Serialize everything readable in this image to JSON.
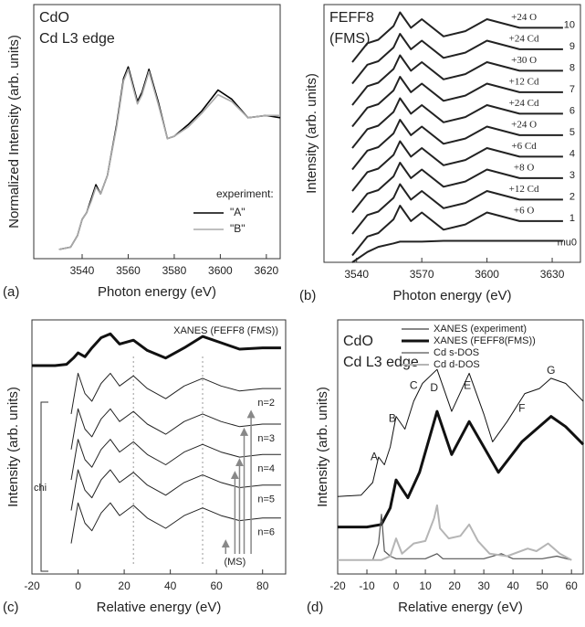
{
  "chart_data": [
    {
      "type": "line",
      "panel_label": "(a)",
      "title": "CdO",
      "subtitle": "Cd L3 edge",
      "xlabel": "Photon energy (eV)",
      "ylabel": "Normalized Intensity (arb. units)",
      "xlim": [
        3519,
        3626
      ],
      "ylim": [
        0,
        1.1
      ],
      "xticks": [
        3540,
        3560,
        3580,
        3600,
        3620
      ],
      "legend": "lower right",
      "legend_title": "experiment:",
      "series": [
        {
          "name": "\"A\"",
          "color": "#000000",
          "linewidth": 1.6,
          "x": [
            3530,
            3535,
            3538,
            3540,
            3542,
            3544,
            3546,
            3548,
            3551,
            3555,
            3558,
            3560,
            3564,
            3566,
            3569,
            3573,
            3577,
            3580,
            3586,
            3592,
            3599,
            3605,
            3612,
            3620,
            3626
          ],
          "values": [
            0.04,
            0.05,
            0.1,
            0.17,
            0.2,
            0.26,
            0.32,
            0.28,
            0.36,
            0.58,
            0.78,
            0.83,
            0.68,
            0.72,
            0.82,
            0.68,
            0.52,
            0.53,
            0.58,
            0.64,
            0.73,
            0.69,
            0.61,
            0.62,
            0.61
          ]
        },
        {
          "name": "\"B\"",
          "color": "#aaaaaa",
          "linewidth": 1.6,
          "x": [
            3530,
            3535,
            3538,
            3540,
            3542,
            3544,
            3546,
            3548,
            3551,
            3555,
            3558,
            3560,
            3564,
            3566,
            3569,
            3573,
            3577,
            3580,
            3586,
            3592,
            3599,
            3605,
            3612,
            3620,
            3626
          ],
          "values": [
            0.04,
            0.05,
            0.1,
            0.17,
            0.2,
            0.25,
            0.31,
            0.28,
            0.36,
            0.57,
            0.77,
            0.82,
            0.67,
            0.71,
            0.81,
            0.67,
            0.52,
            0.53,
            0.57,
            0.63,
            0.71,
            0.68,
            0.61,
            0.62,
            0.62
          ]
        }
      ]
    },
    {
      "type": "line",
      "panel_label": "(b)",
      "title": "FEFF8",
      "subtitle": "(FMS)",
      "xlabel": "Photon energy (eV)",
      "ylabel": "Intensity (arb. units)",
      "xlim": [
        3525,
        3643
      ],
      "ylim": [
        0,
        15
      ],
      "xticks": [
        3540,
        3570,
        3600,
        3630
      ],
      "series": [
        {
          "name": "mu0",
          "color": "#222222",
          "linewidth": 2,
          "x": [
            3538,
            3545,
            3550,
            3557,
            3560,
            3565,
            3570,
            3580,
            3590,
            3600,
            3615,
            3635
          ],
          "values": [
            0.0,
            0.6,
            0.9,
            1.1,
            1.2,
            1.2,
            1.2,
            1.25,
            1.25,
            1.25,
            1.25,
            1.25
          ]
        },
        {
          "name": "+6 O",
          "number": "1",
          "color": "#222222",
          "linewidth": 2,
          "x": [
            3538,
            3545,
            3550,
            3557,
            3560,
            3565,
            3570,
            3580,
            3590,
            3600,
            3615,
            3635
          ],
          "values": [
            0.4,
            1.5,
            1.7,
            2.5,
            3.3,
            2.4,
            2.9,
            1.9,
            2.2,
            2.9,
            2.4,
            2.4
          ]
        },
        {
          "name": "+12 Cd",
          "number": "2",
          "color": "#222222",
          "linewidth": 2,
          "x": [
            3538,
            3545,
            3550,
            3557,
            3560,
            3565,
            3570,
            3580,
            3590,
            3600,
            3615,
            3635
          ],
          "values": [
            1.65,
            2.75,
            2.95,
            3.75,
            4.55,
            3.65,
            4.15,
            3.15,
            3.45,
            4.15,
            3.65,
            3.65
          ]
        },
        {
          "name": "+8 O",
          "number": "3",
          "color": "#222222",
          "linewidth": 2,
          "x": [
            3538,
            3545,
            3550,
            3557,
            3560,
            3565,
            3570,
            3580,
            3590,
            3600,
            3615,
            3635
          ],
          "values": [
            2.9,
            4.0,
            4.2,
            5.0,
            5.8,
            4.9,
            5.4,
            4.4,
            4.7,
            5.4,
            4.9,
            4.9
          ]
        },
        {
          "name": "+6 Cd",
          "number": "4",
          "color": "#222222",
          "linewidth": 2,
          "x": [
            3538,
            3545,
            3550,
            3557,
            3560,
            3565,
            3570,
            3580,
            3590,
            3600,
            3615,
            3635
          ],
          "values": [
            4.15,
            5.25,
            5.45,
            6.25,
            7.05,
            6.15,
            6.65,
            5.65,
            5.95,
            6.65,
            6.15,
            6.15
          ]
        },
        {
          "name": "+24 O",
          "number": "5",
          "color": "#222222",
          "linewidth": 2,
          "x": [
            3538,
            3545,
            3550,
            3557,
            3560,
            3565,
            3570,
            3580,
            3590,
            3600,
            3615,
            3635
          ],
          "values": [
            5.4,
            6.5,
            6.7,
            7.5,
            8.3,
            7.4,
            7.9,
            6.9,
            7.2,
            7.9,
            7.4,
            7.4
          ]
        },
        {
          "name": "+24 Cd",
          "number": "6",
          "color": "#222222",
          "linewidth": 2,
          "x": [
            3538,
            3545,
            3550,
            3557,
            3560,
            3565,
            3570,
            3580,
            3590,
            3600,
            3615,
            3635
          ],
          "values": [
            6.65,
            7.75,
            7.95,
            8.75,
            9.55,
            8.65,
            9.15,
            8.15,
            8.45,
            9.15,
            8.65,
            8.65
          ]
        },
        {
          "name": "+12 Cd",
          "number": "7",
          "color": "#222222",
          "linewidth": 2,
          "x": [
            3538,
            3545,
            3550,
            3557,
            3560,
            3565,
            3570,
            3580,
            3590,
            3600,
            3615,
            3635
          ],
          "values": [
            7.9,
            9.0,
            9.2,
            10.0,
            10.8,
            9.9,
            10.4,
            9.4,
            9.7,
            10.4,
            9.9,
            9.9
          ]
        },
        {
          "name": "+30 O",
          "number": "8",
          "color": "#222222",
          "linewidth": 2,
          "x": [
            3538,
            3545,
            3550,
            3557,
            3560,
            3565,
            3570,
            3580,
            3590,
            3600,
            3615,
            3635
          ],
          "values": [
            9.15,
            10.25,
            10.45,
            11.25,
            12.05,
            11.15,
            11.65,
            10.65,
            10.95,
            11.65,
            11.15,
            11.15
          ]
        },
        {
          "name": "+24 Cd",
          "number": "9",
          "color": "#222222",
          "linewidth": 2,
          "x": [
            3538,
            3545,
            3550,
            3557,
            3560,
            3565,
            3570,
            3580,
            3590,
            3600,
            3615,
            3635
          ],
          "values": [
            10.4,
            11.5,
            11.7,
            12.5,
            13.3,
            12.4,
            12.9,
            11.9,
            12.2,
            12.9,
            12.4,
            12.4
          ]
        },
        {
          "name": "+24 O",
          "number": "10",
          "color": "#222222",
          "linewidth": 2,
          "x": [
            3538,
            3545,
            3550,
            3557,
            3560,
            3565,
            3570,
            3580,
            3590,
            3600,
            3615,
            3635
          ],
          "values": [
            11.65,
            12.75,
            12.95,
            13.75,
            14.55,
            13.65,
            14.15,
            13.15,
            13.45,
            14.15,
            13.65,
            13.65
          ]
        }
      ]
    },
    {
      "type": "line",
      "panel_label": "(c)",
      "xlabel": "Relative energy (eV)",
      "ylabel": "Intensity (arb. units)",
      "xlim": [
        -20,
        90
      ],
      "ylim": [
        0,
        10
      ],
      "xticks": [
        -20,
        0,
        20,
        40,
        60,
        80
      ],
      "bracket_label": "chi",
      "guide_x": [
        24,
        54
      ],
      "ms_label": "(MS)",
      "ms_arrows_x": [
        64,
        68,
        70,
        72,
        75
      ],
      "ms_arrows_y": [
        1.2,
        3.9,
        4.4,
        5.6,
        6.3
      ],
      "series": [
        {
          "name": "XANES (FEFF8 (FMS))",
          "color": "#111111",
          "linewidth": 3,
          "x": [
            -20,
            -10,
            -5,
            -2,
            0,
            3,
            6,
            10,
            14,
            18,
            24,
            30,
            38,
            46,
            54,
            62,
            70,
            80,
            88
          ],
          "values": [
            8.2,
            8.2,
            8.25,
            8.5,
            8.7,
            8.55,
            8.9,
            9.3,
            9.45,
            9.05,
            9.2,
            8.8,
            8.5,
            8.9,
            9.35,
            9.1,
            8.85,
            8.9,
            8.9
          ]
        },
        {
          "name": "n=2",
          "color": "#222222",
          "linewidth": 1,
          "x": [
            -3,
            0,
            3,
            6,
            10,
            14,
            18,
            24,
            30,
            38,
            46,
            54,
            62,
            70,
            80,
            88
          ],
          "values": [
            6.3,
            7.9,
            7.1,
            6.8,
            7.5,
            7.9,
            7.4,
            7.8,
            7.3,
            6.9,
            7.4,
            7.7,
            7.4,
            7.2,
            7.3,
            7.3
          ]
        },
        {
          "name": "n=3",
          "color": "#222222",
          "linewidth": 1,
          "x": [
            -3,
            0,
            3,
            6,
            10,
            14,
            18,
            24,
            30,
            38,
            46,
            54,
            62,
            70,
            80,
            88
          ],
          "values": [
            4.9,
            6.5,
            5.7,
            5.4,
            6.1,
            6.5,
            6.0,
            6.4,
            5.9,
            5.5,
            6.0,
            6.3,
            6.0,
            5.8,
            5.9,
            5.9
          ]
        },
        {
          "name": "n=4",
          "color": "#222222",
          "linewidth": 1,
          "x": [
            -3,
            0,
            3,
            6,
            10,
            14,
            18,
            24,
            30,
            38,
            46,
            54,
            62,
            70,
            80,
            88
          ],
          "values": [
            3.7,
            5.3,
            4.5,
            4.2,
            4.9,
            5.3,
            4.8,
            5.2,
            4.7,
            4.3,
            4.8,
            5.1,
            4.8,
            4.6,
            4.7,
            4.7
          ]
        },
        {
          "name": "n=5",
          "color": "#222222",
          "linewidth": 1,
          "x": [
            -3,
            0,
            3,
            6,
            10,
            14,
            18,
            24,
            30,
            38,
            46,
            54,
            62,
            70,
            80,
            88
          ],
          "values": [
            2.5,
            4.1,
            3.3,
            3.0,
            3.7,
            4.1,
            3.6,
            4.0,
            3.5,
            3.1,
            3.6,
            3.9,
            3.6,
            3.4,
            3.5,
            3.5
          ]
        },
        {
          "name": "n=6",
          "color": "#222222",
          "linewidth": 1,
          "x": [
            -3,
            0,
            3,
            6,
            10,
            14,
            18,
            24,
            30,
            38,
            46,
            54,
            62,
            70,
            80,
            88
          ],
          "values": [
            1.2,
            2.8,
            2.0,
            1.7,
            2.4,
            2.8,
            2.3,
            2.7,
            2.2,
            1.8,
            2.3,
            2.6,
            2.3,
            2.1,
            2.2,
            2.2
          ]
        }
      ]
    },
    {
      "type": "line",
      "panel_label": "(d)",
      "title": "CdO",
      "subtitle": "Cd L3 edge",
      "xlabel": "Relative energy (eV)",
      "ylabel": "Intensity (arb. units)",
      "xlim": [
        -20,
        64
      ],
      "ylim": [
        0,
        10
      ],
      "xticks": [
        -20,
        -10,
        0,
        10,
        20,
        30,
        40,
        50,
        60
      ],
      "legend": "upper right",
      "annotations": [
        {
          "text": "A",
          "x": -7.5,
          "y": 4.6
        },
        {
          "text": "B",
          "x": -1.3,
          "y": 6.1
        },
        {
          "text": "C",
          "x": 6,
          "y": 7.4
        },
        {
          "text": "D",
          "x": 13,
          "y": 7.3
        },
        {
          "text": "E",
          "x": 24.4,
          "y": 7.4
        },
        {
          "text": "F",
          "x": 43,
          "y": 6.5
        },
        {
          "text": "G",
          "x": 53,
          "y": 8.0
        }
      ],
      "series": [
        {
          "name": "XANES (experiment)",
          "color": "#111111",
          "linewidth": 1,
          "x": [
            -20,
            -12,
            -8,
            -6,
            -4,
            -2,
            0,
            3,
            6,
            9,
            14,
            19,
            25,
            30,
            33,
            38,
            44,
            49,
            53,
            58,
            64
          ],
          "values": [
            3.05,
            3.1,
            3.6,
            4.6,
            4.3,
            5.0,
            6.2,
            5.7,
            6.8,
            7.5,
            8.05,
            6.4,
            7.9,
            6.3,
            5.2,
            6.0,
            7.1,
            7.3,
            7.7,
            7.5,
            6.8
          ]
        },
        {
          "name": "XANES (FEFF8(FMS))",
          "color": "#111111",
          "linewidth": 3,
          "x": [
            -20,
            -10,
            -5,
            -2,
            0,
            4,
            8,
            14,
            19,
            25,
            30,
            35,
            43,
            53,
            58,
            64
          ],
          "values": [
            1.85,
            1.85,
            1.95,
            2.6,
            3.7,
            3.0,
            4.0,
            6.4,
            4.7,
            6.0,
            5.0,
            4.0,
            5.2,
            6.2,
            5.8,
            5.1
          ]
        },
        {
          "name": "Cd s-DOS",
          "color": "#555555",
          "linewidth": 1.2,
          "x": [
            -20,
            -8,
            -6,
            -5,
            -4,
            -2,
            0,
            5,
            10,
            14,
            16,
            20,
            30,
            36,
            40,
            50,
            55,
            60
          ],
          "values": [
            0.55,
            0.55,
            1.2,
            2.35,
            0.9,
            0.7,
            0.6,
            0.6,
            0.6,
            0.8,
            0.6,
            0.6,
            0.6,
            0.8,
            0.6,
            0.6,
            0.7,
            0.55
          ]
        },
        {
          "name": "Cd d-DOS",
          "color": "#b5b5b5",
          "linewidth": 2,
          "x": [
            -20,
            -5,
            -2,
            0,
            2,
            6,
            10,
            13,
            14,
            15,
            18,
            22,
            25,
            28,
            32,
            38,
            45,
            48,
            52,
            56,
            60
          ],
          "values": [
            0.55,
            0.55,
            0.7,
            1.4,
            0.8,
            1.2,
            1.3,
            2.2,
            2.7,
            1.8,
            1.4,
            1.5,
            1.95,
            1.3,
            0.8,
            0.7,
            1.0,
            0.9,
            1.2,
            0.8,
            0.55
          ]
        }
      ]
    }
  ]
}
